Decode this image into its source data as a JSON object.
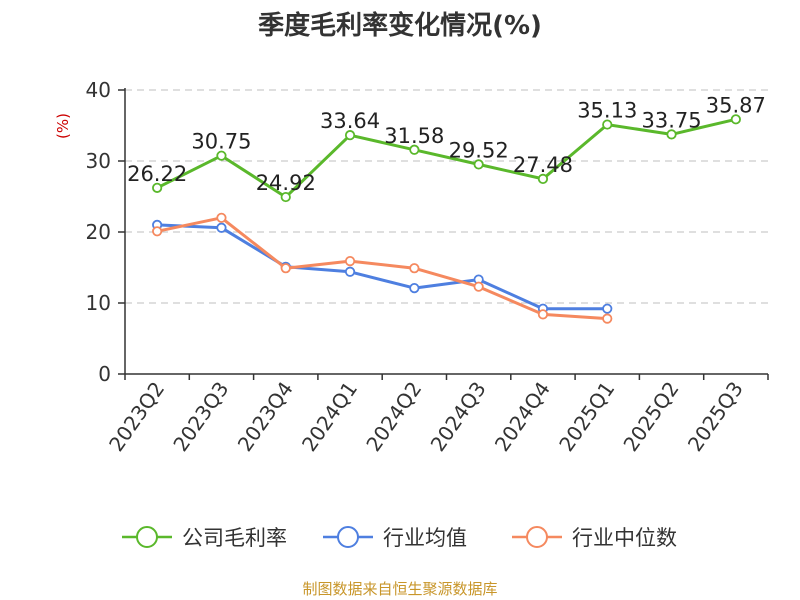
{
  "chart_data": {
    "type": "line",
    "title": "季度毛利率变化情况(%)",
    "ylabel": "(%)",
    "xlabel": "",
    "ylim": [
      0,
      40
    ],
    "yticks": [
      0,
      10,
      20,
      30,
      40
    ],
    "grid": true,
    "legend_position": "bottom",
    "categories": [
      "2023Q2",
      "2023Q3",
      "2023Q4",
      "2024Q1",
      "2024Q2",
      "2024Q3",
      "2024Q4",
      "2025Q1",
      "2025Q2",
      "2025Q3"
    ],
    "series": [
      {
        "name": "公司毛利率",
        "color": "#5ab82b",
        "values": [
          26.22,
          30.75,
          24.92,
          33.64,
          31.58,
          29.52,
          27.48,
          35.13,
          33.75,
          35.87
        ],
        "data_labels": [
          "26.22",
          "30.75",
          "24.92",
          "33.64",
          "31.58",
          "29.52",
          "27.48",
          "35.13",
          "33.75",
          "35.87"
        ]
      },
      {
        "name": "行业均值",
        "color": "#4e7fe0",
        "values": [
          21.0,
          20.6,
          15.1,
          14.4,
          12.1,
          13.3,
          9.2,
          9.2,
          null,
          null
        ]
      },
      {
        "name": "行业中位数",
        "color": "#f5895f",
        "values": [
          20.1,
          22.0,
          14.9,
          15.9,
          14.9,
          12.3,
          8.4,
          7.8,
          null,
          null
        ]
      }
    ]
  },
  "source_text": "制图数据来自恒生聚源数据库",
  "colors": {
    "axis": "#333333",
    "grid": "#cccccc",
    "unit_label": "#cc0000",
    "source": "#c8962a"
  }
}
